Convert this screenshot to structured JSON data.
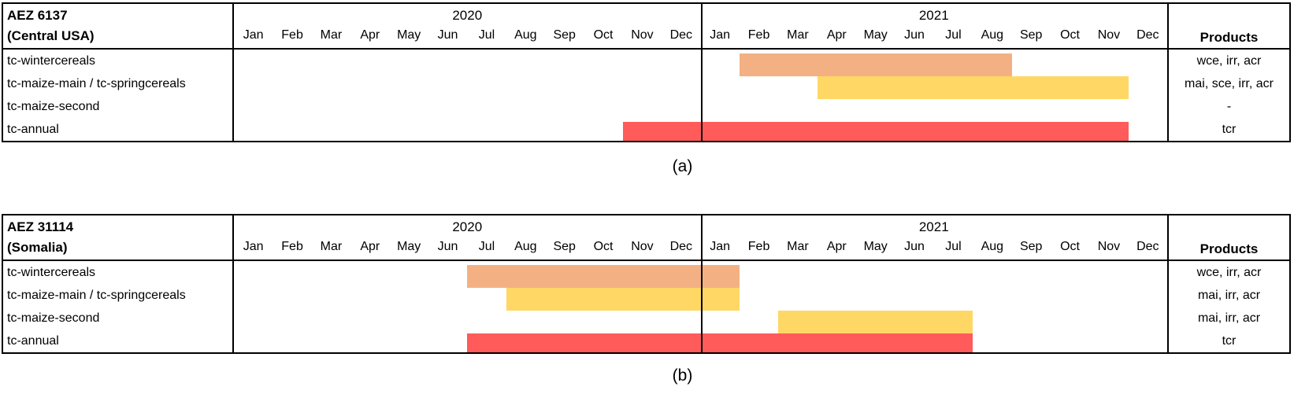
{
  "colors": {
    "wintercereals": "#F3B183",
    "maize": "#FFD764",
    "annual": "#FF5B5B",
    "border": "#000000",
    "background": "#FFFFFF"
  },
  "months": [
    "Jan",
    "Feb",
    "Mar",
    "Apr",
    "May",
    "Jun",
    "Jul",
    "Aug",
    "Sep",
    "Oct",
    "Nov",
    "Dec"
  ],
  "chart_data": [
    {
      "type": "gantt",
      "aez_label": "AEZ 6137",
      "region_label": "(Central USA)",
      "years": [
        "2020",
        "2021"
      ],
      "products_header": "Products",
      "caption": "(a)",
      "x_axis": {
        "start": "2020-01",
        "end": "2021-12",
        "unit": "month"
      },
      "rows": [
        {
          "label": "tc-wintercereals",
          "products": "wce, irr, acr",
          "bars": [
            {
              "start": "2021-02",
              "end": "2021-08",
              "start_index": 13,
              "span": 7,
              "color": "wintercereals"
            }
          ]
        },
        {
          "label": "tc-maize-main / tc-springcereals",
          "products": "mai, sce, irr, acr",
          "bars": [
            {
              "start": "2021-04",
              "end": "2021-11",
              "start_index": 15,
              "span": 8,
              "color": "maize"
            }
          ]
        },
        {
          "label": "tc-maize-second",
          "products": "-",
          "bars": []
        },
        {
          "label": "tc-annual",
          "products": "tcr",
          "bars": [
            {
              "start": "2020-11",
              "end": "2021-11",
              "start_index": 10,
              "span": 13,
              "color": "annual"
            }
          ]
        }
      ]
    },
    {
      "type": "gantt",
      "aez_label": "AEZ 31114",
      "region_label": "(Somalia)",
      "years": [
        "2020",
        "2021"
      ],
      "products_header": "Products",
      "caption": "(b)",
      "x_axis": {
        "start": "2020-01",
        "end": "2021-12",
        "unit": "month"
      },
      "rows": [
        {
          "label": "tc-wintercereals",
          "products": "wce, irr, acr",
          "bars": [
            {
              "start": "2020-07",
              "end": "2021-01",
              "start_index": 6,
              "span": 7,
              "color": "wintercereals"
            }
          ]
        },
        {
          "label": "tc-maize-main / tc-springcereals",
          "products": "mai, irr, acr",
          "bars": [
            {
              "start": "2020-08",
              "end": "2021-01",
              "start_index": 7,
              "span": 6,
              "color": "maize"
            }
          ]
        },
        {
          "label": "tc-maize-second",
          "products": "mai, irr, acr",
          "bars": [
            {
              "start": "2021-03",
              "end": "2021-07",
              "start_index": 14,
              "span": 5,
              "color": "maize"
            }
          ]
        },
        {
          "label": "tc-annual",
          "products": "tcr",
          "bars": [
            {
              "start": "2020-07",
              "end": "2021-07",
              "start_index": 6,
              "span": 13,
              "color": "annual"
            }
          ]
        }
      ]
    }
  ]
}
